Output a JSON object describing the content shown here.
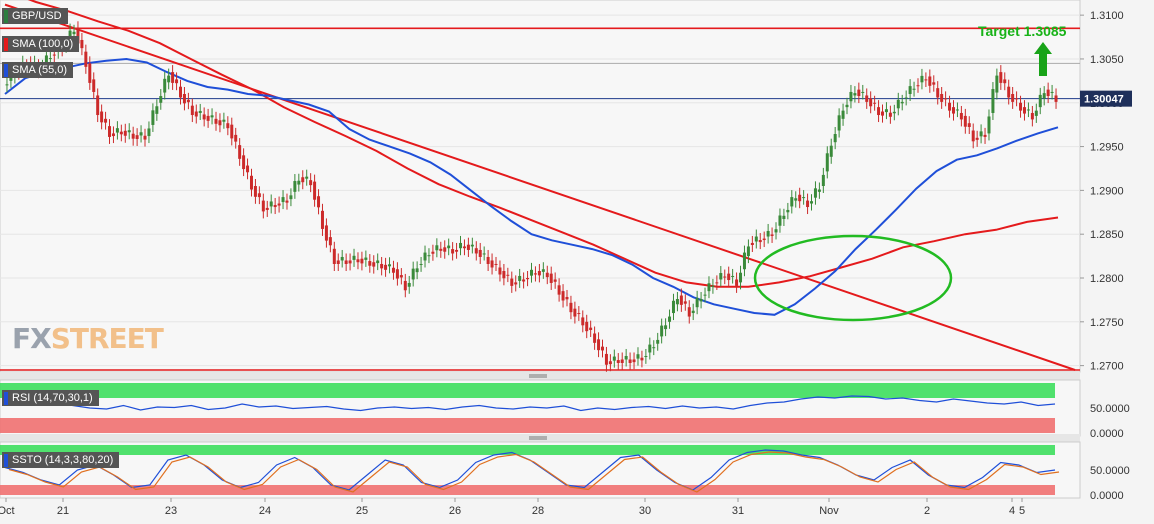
{
  "chart_data": {
    "type": "candlestick",
    "symbol": "GBP/USD",
    "indicators": {
      "sma100_label": "SMA (100,0)",
      "sma55_label": "SMA (55,0)",
      "rsi_label": "RSI (14,70,30,1)",
      "ssto_label": "SSTO (14,3,3,80,20)"
    },
    "target_label": "Target 1.3085",
    "target_level": 1.3085,
    "last_price": "1.30047",
    "last_value": 1.30047,
    "resistance_level": 1.3045,
    "support_level": 1.2695,
    "watermark": "FXSTREET",
    "y_ticks": [
      "1.3100",
      "1.3050",
      "1.3000",
      "1.2950",
      "1.2900",
      "1.2850",
      "1.2800",
      "1.2750",
      "1.2700"
    ],
    "y_tick_values": [
      1.31,
      1.305,
      1.3,
      1.295,
      1.29,
      1.285,
      1.28,
      1.275,
      1.27
    ],
    "ylim": [
      1.2695,
      1.3115
    ],
    "x_labels": [
      "Oct",
      "21",
      "23",
      "24",
      "25",
      "26",
      "28",
      "30",
      "31",
      "Nov",
      "2",
      "4",
      "5"
    ],
    "rsi_ticks": [
      "50.0000",
      "0.0000"
    ],
    "ssto_ticks": [
      "50.0000",
      "0.0000"
    ],
    "price_path": [
      1.302,
      1.3035,
      1.3045,
      1.304,
      1.3055,
      1.3065,
      1.3085,
      1.3045,
      1.299,
      1.2965,
      1.2968,
      1.2963,
      1.2962,
      1.3,
      1.3035,
      1.301,
      1.299,
      1.2985,
      1.298,
      1.2975,
      1.294,
      1.2905,
      1.288,
      1.2885,
      1.289,
      1.2915,
      1.291,
      1.286,
      1.282,
      1.282,
      1.2822,
      1.2818,
      1.2815,
      1.281,
      1.279,
      1.2815,
      1.283,
      1.2835,
      1.2832,
      1.2838,
      1.2832,
      1.282,
      1.2808,
      1.2795,
      1.28,
      1.2808,
      1.2805,
      1.2785,
      1.2765,
      1.275,
      1.273,
      1.2705,
      1.2707,
      1.2707,
      1.271,
      1.2725,
      1.275,
      1.278,
      1.276,
      1.278,
      1.2795,
      1.2805,
      1.2795,
      1.284,
      1.2845,
      1.2852,
      1.2875,
      1.2895,
      1.2885,
      1.2905,
      1.2955,
      1.2995,
      1.3015,
      1.3005,
      1.299,
      1.2988,
      1.3005,
      1.302,
      1.303,
      1.301,
      1.2995,
      1.2985,
      1.296,
      1.2965,
      1.3035,
      1.301,
      1.2995,
      1.2985,
      1.3015,
      1.3005
    ],
    "sma55": [
      1.301,
      1.3028,
      1.3035,
      1.304,
      1.3045,
      1.3048,
      1.305,
      1.3046,
      1.3035,
      1.3025,
      1.3018,
      1.3015,
      1.301,
      1.3008,
      1.3003,
      1.2998,
      1.299,
      1.297,
      1.2958,
      1.295,
      1.2942,
      1.2932,
      1.2918,
      1.29,
      1.2882,
      1.2865,
      1.285,
      1.2843,
      1.2838,
      1.2833,
      1.2826,
      1.2815,
      1.28,
      1.279,
      1.2778,
      1.277,
      1.2765,
      1.276,
      1.2758,
      1.277,
      1.2788,
      1.2808,
      1.2833,
      1.2855,
      1.2878,
      1.2902,
      1.2922,
      1.2935,
      1.294,
      1.2948,
      1.2957,
      1.2965,
      1.2972
    ],
    "sma100": [
      1.3128,
      1.3115,
      1.3105,
      1.3093,
      1.3082,
      1.3068,
      1.305,
      1.3032,
      1.3015,
      1.2995,
      1.2978,
      1.2962,
      1.2945,
      1.2925,
      1.2907,
      1.2893,
      1.288,
      1.2866,
      1.2852,
      1.2838,
      1.2822,
      1.2806,
      1.2795,
      1.279,
      1.279,
      1.2795,
      1.2802,
      1.2812,
      1.2822,
      1.2835,
      1.2842,
      1.285,
      1.2855,
      1.2864,
      1.2869
    ],
    "trendline": [
      [
        0,
        1.3112
      ],
      [
        1,
        1.2695
      ]
    ],
    "rsi_values": [
      60,
      58,
      57,
      60,
      55,
      50,
      48,
      55,
      46,
      52,
      51,
      55,
      47,
      50,
      58,
      52,
      54,
      49,
      51,
      53,
      48,
      45,
      50,
      52,
      49,
      51,
      47,
      52,
      55,
      50,
      48,
      52,
      50,
      54,
      45,
      50,
      47,
      51,
      53,
      49,
      54,
      50,
      52,
      48,
      55,
      60,
      62,
      68,
      72,
      70,
      74,
      73,
      68,
      70,
      65,
      62,
      68,
      64,
      60,
      58,
      62,
      55,
      58
    ],
    "ssto_values": [
      55,
      45,
      30,
      20,
      50,
      60,
      40,
      15,
      20,
      70,
      80,
      60,
      30,
      15,
      25,
      60,
      75,
      55,
      20,
      10,
      40,
      70,
      60,
      25,
      15,
      30,
      65,
      80,
      85,
      70,
      45,
      20,
      15,
      45,
      75,
      80,
      50,
      25,
      10,
      35,
      70,
      85,
      90,
      88,
      80,
      75,
      60,
      40,
      30,
      55,
      70,
      40,
      20,
      15,
      35,
      65,
      60,
      45,
      50
    ],
    "rsi_overbought": 70,
    "rsi_oversold": 30,
    "ssto_overbought": 80,
    "ssto_oversold": 20
  },
  "colors": {
    "sma100": "#e41a1c",
    "sma55": "#1f4fd8",
    "bull": "#3a8a3a",
    "bear": "#cc2a2a",
    "target": "#18b318"
  }
}
